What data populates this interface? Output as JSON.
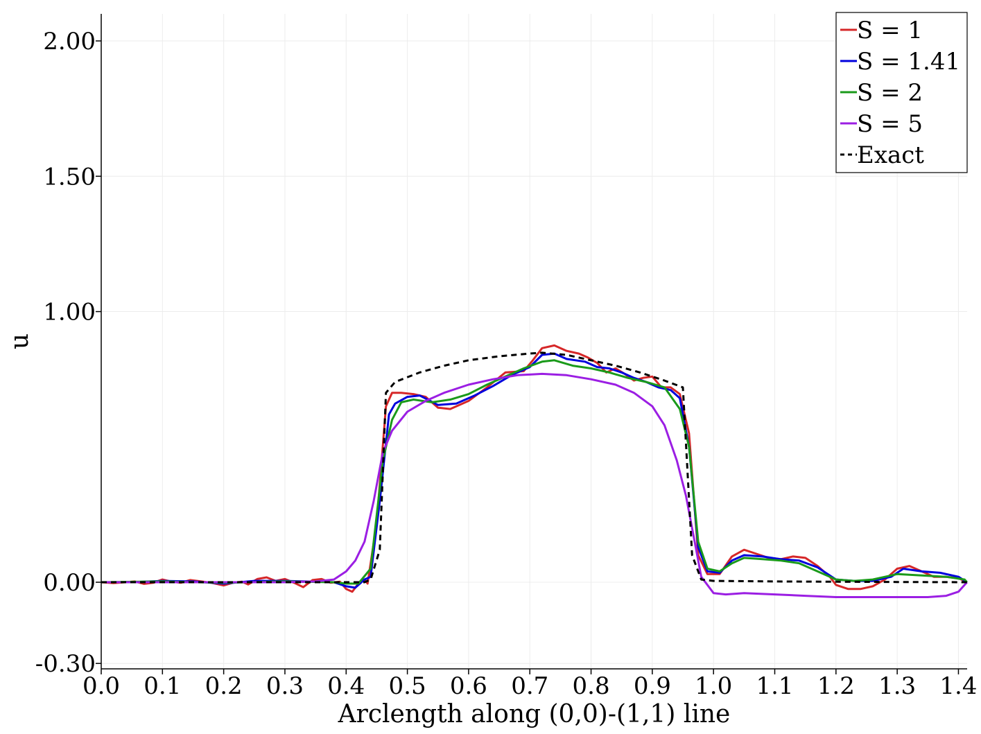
{
  "chart_data": {
    "type": "line",
    "title": "",
    "xlabel": "Arclength along (0,0)-(1,1) line",
    "ylabel": "u",
    "xlim": [
      0,
      1.4142
    ],
    "ylim": [
      -0.32,
      2.1
    ],
    "x_ticks": [
      "0.0",
      "0.1",
      "0.2",
      "0.3",
      "0.4",
      "0.5",
      "0.6",
      "0.7",
      "0.8",
      "0.9",
      "1.0",
      "1.1",
      "1.2",
      "1.3",
      "1.4"
    ],
    "x_tick_values": [
      0,
      0.1,
      0.2,
      0.3,
      0.4,
      0.5,
      0.6,
      0.7,
      0.8,
      0.9,
      1.0,
      1.1,
      1.2,
      1.3,
      1.4
    ],
    "y_ticks": [
      "-0.30",
      "0.00",
      "1.00",
      "1.50",
      "2.00"
    ],
    "y_tick_values": [
      -0.3,
      0,
      1.0,
      1.5,
      2.0
    ],
    "grid": true,
    "legend_position": "top-right",
    "series": [
      {
        "name": "S = 1",
        "color": "#d62728",
        "dash": "solid",
        "points": [
          [
            0,
            0
          ],
          [
            0.02,
            -0.003
          ],
          [
            0.04,
            0
          ],
          [
            0.055,
            0.003
          ],
          [
            0.07,
            -0.006
          ],
          [
            0.085,
            -0.002
          ],
          [
            0.1,
            0.01
          ],
          [
            0.115,
            0.002
          ],
          [
            0.13,
            -0.002
          ],
          [
            0.145,
            0.008
          ],
          [
            0.16,
            0.004
          ],
          [
            0.18,
            -0.002
          ],
          [
            0.2,
            -0.012
          ],
          [
            0.215,
            -0.002
          ],
          [
            0.23,
            0.002
          ],
          [
            0.24,
            -0.008
          ],
          [
            0.255,
            0.012
          ],
          [
            0.27,
            0.018
          ],
          [
            0.285,
            0.005
          ],
          [
            0.3,
            0.012
          ],
          [
            0.315,
            -0.002
          ],
          [
            0.33,
            -0.018
          ],
          [
            0.345,
            0.008
          ],
          [
            0.36,
            0.012
          ],
          [
            0.375,
            -0.002
          ],
          [
            0.39,
            0.002
          ],
          [
            0.4,
            -0.025
          ],
          [
            0.41,
            -0.035
          ],
          [
            0.42,
            -0.005
          ],
          [
            0.43,
            0.01
          ],
          [
            0.435,
            -0.005
          ],
          [
            0.45,
            0.22
          ],
          [
            0.465,
            0.65
          ],
          [
            0.475,
            0.7
          ],
          [
            0.49,
            0.7
          ],
          [
            0.51,
            0.695
          ],
          [
            0.53,
            0.685
          ],
          [
            0.55,
            0.645
          ],
          [
            0.57,
            0.64
          ],
          [
            0.6,
            0.67
          ],
          [
            0.63,
            0.72
          ],
          [
            0.66,
            0.775
          ],
          [
            0.69,
            0.78
          ],
          [
            0.705,
            0.82
          ],
          [
            0.72,
            0.865
          ],
          [
            0.74,
            0.875
          ],
          [
            0.76,
            0.855
          ],
          [
            0.78,
            0.845
          ],
          [
            0.795,
            0.83
          ],
          [
            0.81,
            0.81
          ],
          [
            0.825,
            0.775
          ],
          [
            0.84,
            0.79
          ],
          [
            0.855,
            0.77
          ],
          [
            0.87,
            0.745
          ],
          [
            0.885,
            0.755
          ],
          [
            0.9,
            0.76
          ],
          [
            0.915,
            0.72
          ],
          [
            0.93,
            0.72
          ],
          [
            0.945,
            0.695
          ],
          [
            0.96,
            0.55
          ],
          [
            0.975,
            0.1
          ],
          [
            0.99,
            0.03
          ],
          [
            1.01,
            0.03
          ],
          [
            1.03,
            0.095
          ],
          [
            1.05,
            0.12
          ],
          [
            1.07,
            0.105
          ],
          [
            1.09,
            0.09
          ],
          [
            1.11,
            0.085
          ],
          [
            1.13,
            0.095
          ],
          [
            1.15,
            0.09
          ],
          [
            1.17,
            0.06
          ],
          [
            1.19,
            0.02
          ],
          [
            1.2,
            -0.01
          ],
          [
            1.22,
            -0.025
          ],
          [
            1.24,
            -0.025
          ],
          [
            1.26,
            -0.015
          ],
          [
            1.28,
            0.01
          ],
          [
            1.3,
            0.05
          ],
          [
            1.32,
            0.06
          ],
          [
            1.34,
            0.04
          ],
          [
            1.36,
            0.02
          ],
          [
            1.38,
            0.02
          ],
          [
            1.4,
            0.015
          ],
          [
            1.414,
            0
          ]
        ]
      },
      {
        "name": "S = 1.41",
        "color": "#0000dd",
        "dash": "solid",
        "points": [
          [
            0,
            0
          ],
          [
            0.05,
            0
          ],
          [
            0.1,
            0.005
          ],
          [
            0.15,
            0.003
          ],
          [
            0.2,
            -0.005
          ],
          [
            0.25,
            0.005
          ],
          [
            0.3,
            0.005
          ],
          [
            0.35,
            0.002
          ],
          [
            0.38,
            0
          ],
          [
            0.4,
            -0.015
          ],
          [
            0.415,
            -0.02
          ],
          [
            0.43,
            0.01
          ],
          [
            0.44,
            0.02
          ],
          [
            0.455,
            0.3
          ],
          [
            0.47,
            0.62
          ],
          [
            0.48,
            0.66
          ],
          [
            0.5,
            0.685
          ],
          [
            0.52,
            0.69
          ],
          [
            0.55,
            0.655
          ],
          [
            0.58,
            0.66
          ],
          [
            0.61,
            0.69
          ],
          [
            0.64,
            0.725
          ],
          [
            0.67,
            0.765
          ],
          [
            0.7,
            0.795
          ],
          [
            0.72,
            0.84
          ],
          [
            0.74,
            0.845
          ],
          [
            0.76,
            0.825
          ],
          [
            0.79,
            0.815
          ],
          [
            0.81,
            0.795
          ],
          [
            0.83,
            0.79
          ],
          [
            0.85,
            0.775
          ],
          [
            0.87,
            0.755
          ],
          [
            0.89,
            0.74
          ],
          [
            0.91,
            0.72
          ],
          [
            0.93,
            0.71
          ],
          [
            0.945,
            0.68
          ],
          [
            0.96,
            0.5
          ],
          [
            0.975,
            0.13
          ],
          [
            0.99,
            0.04
          ],
          [
            1.01,
            0.035
          ],
          [
            1.03,
            0.08
          ],
          [
            1.05,
            0.1
          ],
          [
            1.08,
            0.095
          ],
          [
            1.11,
            0.085
          ],
          [
            1.14,
            0.08
          ],
          [
            1.17,
            0.055
          ],
          [
            1.2,
            0.01
          ],
          [
            1.23,
            0.005
          ],
          [
            1.26,
            0.005
          ],
          [
            1.29,
            0.02
          ],
          [
            1.31,
            0.05
          ],
          [
            1.34,
            0.04
          ],
          [
            1.37,
            0.035
          ],
          [
            1.4,
            0.02
          ],
          [
            1.414,
            0
          ]
        ]
      },
      {
        "name": "S = 2",
        "color": "#1a9a1a",
        "dash": "solid",
        "points": [
          [
            0,
            0
          ],
          [
            0.1,
            0.003
          ],
          [
            0.2,
            -0.002
          ],
          [
            0.3,
            0.003
          ],
          [
            0.38,
            0
          ],
          [
            0.4,
            -0.005
          ],
          [
            0.42,
            -0.005
          ],
          [
            0.44,
            0.05
          ],
          [
            0.46,
            0.45
          ],
          [
            0.475,
            0.6
          ],
          [
            0.49,
            0.665
          ],
          [
            0.51,
            0.675
          ],
          [
            0.54,
            0.665
          ],
          [
            0.57,
            0.675
          ],
          [
            0.6,
            0.695
          ],
          [
            0.63,
            0.73
          ],
          [
            0.66,
            0.76
          ],
          [
            0.69,
            0.79
          ],
          [
            0.72,
            0.815
          ],
          [
            0.74,
            0.82
          ],
          [
            0.77,
            0.8
          ],
          [
            0.8,
            0.79
          ],
          [
            0.83,
            0.775
          ],
          [
            0.86,
            0.755
          ],
          [
            0.89,
            0.74
          ],
          [
            0.92,
            0.72
          ],
          [
            0.945,
            0.64
          ],
          [
            0.96,
            0.5
          ],
          [
            0.975,
            0.15
          ],
          [
            0.99,
            0.05
          ],
          [
            1.01,
            0.04
          ],
          [
            1.03,
            0.07
          ],
          [
            1.05,
            0.09
          ],
          [
            1.08,
            0.085
          ],
          [
            1.11,
            0.08
          ],
          [
            1.14,
            0.07
          ],
          [
            1.17,
            0.04
          ],
          [
            1.2,
            0.01
          ],
          [
            1.23,
            0.005
          ],
          [
            1.26,
            0.01
          ],
          [
            1.3,
            0.03
          ],
          [
            1.34,
            0.025
          ],
          [
            1.38,
            0.02
          ],
          [
            1.41,
            0.01
          ],
          [
            1.414,
            0
          ]
        ]
      },
      {
        "name": "S = 5",
        "color": "#9b1ee3",
        "dash": "solid",
        "points": [
          [
            0,
            0
          ],
          [
            0.1,
            0
          ],
          [
            0.2,
            0
          ],
          [
            0.3,
            0
          ],
          [
            0.35,
            0.003
          ],
          [
            0.38,
            0.01
          ],
          [
            0.4,
            0.04
          ],
          [
            0.415,
            0.08
          ],
          [
            0.43,
            0.15
          ],
          [
            0.445,
            0.3
          ],
          [
            0.46,
            0.48
          ],
          [
            0.475,
            0.56
          ],
          [
            0.5,
            0.63
          ],
          [
            0.53,
            0.67
          ],
          [
            0.56,
            0.7
          ],
          [
            0.6,
            0.73
          ],
          [
            0.64,
            0.75
          ],
          [
            0.68,
            0.765
          ],
          [
            0.72,
            0.77
          ],
          [
            0.76,
            0.765
          ],
          [
            0.8,
            0.75
          ],
          [
            0.84,
            0.73
          ],
          [
            0.87,
            0.7
          ],
          [
            0.9,
            0.65
          ],
          [
            0.92,
            0.58
          ],
          [
            0.94,
            0.45
          ],
          [
            0.955,
            0.32
          ],
          [
            0.97,
            0.14
          ],
          [
            0.98,
            0.02
          ],
          [
            1.0,
            -0.04
          ],
          [
            1.02,
            -0.045
          ],
          [
            1.05,
            -0.04
          ],
          [
            1.1,
            -0.045
          ],
          [
            1.15,
            -0.05
          ],
          [
            1.2,
            -0.055
          ],
          [
            1.25,
            -0.055
          ],
          [
            1.3,
            -0.055
          ],
          [
            1.35,
            -0.055
          ],
          [
            1.38,
            -0.05
          ],
          [
            1.4,
            -0.035
          ],
          [
            1.414,
            0
          ]
        ]
      },
      {
        "name": "Exact",
        "color": "#000000",
        "dash": "dashed",
        "points": [
          [
            0,
            0
          ],
          [
            0.43,
            0
          ],
          [
            0.44,
            0.01
          ],
          [
            0.455,
            0.12
          ],
          [
            0.465,
            0.7
          ],
          [
            0.48,
            0.74
          ],
          [
            0.52,
            0.775
          ],
          [
            0.56,
            0.8
          ],
          [
            0.6,
            0.82
          ],
          [
            0.65,
            0.835
          ],
          [
            0.7,
            0.845
          ],
          [
            0.72,
            0.848
          ],
          [
            0.76,
            0.84
          ],
          [
            0.8,
            0.82
          ],
          [
            0.84,
            0.8
          ],
          [
            0.88,
            0.775
          ],
          [
            0.92,
            0.745
          ],
          [
            0.95,
            0.72
          ],
          [
            0.965,
            0.1
          ],
          [
            0.98,
            0.01
          ],
          [
            1.0,
            0.005
          ],
          [
            1.1,
            0.003
          ],
          [
            1.2,
            0.002
          ],
          [
            1.3,
            0.001
          ],
          [
            1.414,
            0
          ]
        ]
      }
    ]
  }
}
